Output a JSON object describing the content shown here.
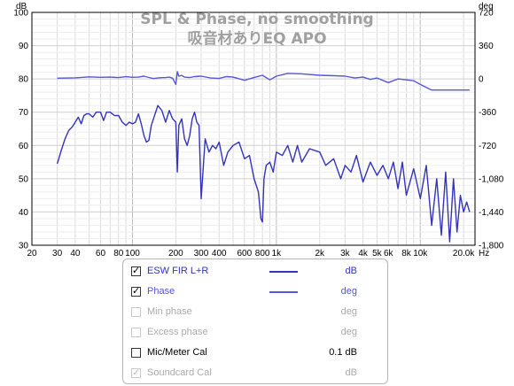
{
  "chart_data": {
    "type": "line",
    "title": "SPL & Phase, no smoothing",
    "subtitle": "吸音材ありEQ APO",
    "xlabel": "Hz",
    "ylabel": "dB",
    "y2label": "deg",
    "x_scale": "log",
    "xlim": [
      20,
      24000
    ],
    "ylim": [
      30,
      100
    ],
    "y2lim": [
      -1800,
      720
    ],
    "grid": true,
    "x_ticks": [
      {
        "v": 20,
        "l": "20"
      },
      {
        "v": 30,
        "l": "30"
      },
      {
        "v": 40,
        "l": "40"
      },
      {
        "v": 60,
        "l": "60"
      },
      {
        "v": 80,
        "l": "80"
      },
      {
        "v": 100,
        "l": "100"
      },
      {
        "v": 200,
        "l": "200"
      },
      {
        "v": 300,
        "l": "300"
      },
      {
        "v": 400,
        "l": "400"
      },
      {
        "v": 600,
        "l": "600"
      },
      {
        "v": 800,
        "l": "800"
      },
      {
        "v": 1000,
        "l": "1k"
      },
      {
        "v": 2000,
        "l": "2k"
      },
      {
        "v": 3000,
        "l": "3k"
      },
      {
        "v": 4000,
        "l": "4k"
      },
      {
        "v": 5000,
        "l": "5k"
      },
      {
        "v": 6000,
        "l": "6k"
      },
      {
        "v": 8000,
        "l": "8k"
      },
      {
        "v": 10000,
        "l": "10k"
      },
      {
        "v": 20000,
        "l": "20.0k"
      }
    ],
    "y_ticks": [
      "100",
      "90",
      "80",
      "70",
      "60",
      "50",
      "40",
      "30"
    ],
    "y2_ticks": [
      "720",
      "360",
      "0",
      "-360",
      "-720",
      "-1,080",
      "-1,440",
      "-1,800"
    ],
    "series": [
      {
        "name": "ESW FIR L+R",
        "axis": "left",
        "color": "#3333bb",
        "x": [
          30,
          32,
          34,
          36,
          38,
          40,
          42,
          44,
          46,
          48,
          50,
          53,
          56,
          60,
          63,
          66,
          70,
          75,
          80,
          85,
          90,
          95,
          100,
          105,
          110,
          115,
          120,
          125,
          130,
          135,
          140,
          150,
          160,
          170,
          180,
          190,
          200,
          205,
          210,
          220,
          230,
          240,
          250,
          260,
          270,
          280,
          290,
          300,
          320,
          340,
          360,
          380,
          400,
          430,
          460,
          500,
          550,
          600,
          650,
          700,
          750,
          780,
          800,
          820,
          850,
          900,
          950,
          1000,
          1100,
          1200,
          1300,
          1400,
          1500,
          1700,
          2000,
          2200,
          2500,
          2800,
          3000,
          3300,
          3600,
          4000,
          4500,
          5000,
          5500,
          6000,
          6500,
          7000,
          7500,
          8000,
          9000,
          10000,
          11000,
          12000,
          13000,
          14000,
          15000,
          16000,
          17000,
          18000,
          19000,
          20000,
          21000,
          22000
        ],
        "y": [
          54.5,
          58.5,
          62,
          64.5,
          65.5,
          67,
          68.5,
          66.5,
          69,
          69.5,
          69.5,
          68.5,
          70,
          70,
          67.5,
          70,
          70,
          69,
          69,
          67,
          66,
          67,
          66.5,
          67,
          69.5,
          66.5,
          63,
          61,
          61.5,
          66,
          68,
          72,
          70.5,
          67,
          70.5,
          68,
          67,
          52,
          66,
          68,
          62,
          60,
          63,
          68,
          70,
          67,
          66,
          44,
          62,
          58,
          60,
          59,
          61,
          54,
          58,
          60,
          61,
          56,
          57,
          50,
          46,
          38,
          37,
          50,
          54,
          55,
          52,
          58,
          57,
          60,
          55,
          60,
          55,
          59,
          58,
          54,
          56,
          50,
          54,
          52,
          57,
          49,
          55,
          51,
          54,
          50,
          55,
          47,
          55,
          45,
          53,
          44,
          54,
          36,
          50,
          33,
          52,
          31,
          50,
          34,
          45,
          40,
          43,
          40
        ]
      },
      {
        "name": "Phase",
        "axis": "right",
        "color": "#5555dd",
        "x": [
          30,
          40,
          50,
          60,
          70,
          80,
          90,
          100,
          110,
          120,
          130,
          140,
          150,
          160,
          170,
          180,
          190,
          200,
          205,
          210,
          220,
          230,
          250,
          270,
          300,
          350,
          400,
          450,
          500,
          600,
          700,
          800,
          900,
          1000,
          1200,
          1500,
          2000,
          2500,
          3000,
          3500,
          4000,
          4500,
          5000,
          6000,
          7000,
          8000,
          9000,
          10000,
          12000,
          14000,
          16000,
          18000,
          20000,
          22000
        ],
        "y": [
          8,
          12,
          22,
          18,
          20,
          15,
          24,
          18,
          20,
          30,
          16,
          4,
          10,
          14,
          15,
          20,
          8,
          -60,
          80,
          30,
          38,
          20,
          15,
          25,
          30,
          10,
          5,
          25,
          20,
          -15,
          15,
          40,
          -10,
          30,
          60,
          55,
          40,
          35,
          30,
          10,
          20,
          -5,
          10,
          -40,
          0,
          -10,
          -20,
          -60,
          -120,
          -120,
          -120,
          -120,
          -120,
          -120
        ]
      }
    ]
  },
  "legend": {
    "items": [
      {
        "label": "ESW FIR L+R",
        "unit": "dB",
        "checked": "✓",
        "enabled": true,
        "color": "#3333bb",
        "show_line": true
      },
      {
        "label": "Phase",
        "unit": "deg",
        "checked": "✓",
        "enabled": true,
        "color": "#5555dd",
        "show_line": true
      },
      {
        "label": "Min phase",
        "unit": "deg",
        "checked": "",
        "enabled": false,
        "color": "#aaaaaa",
        "show_line": false
      },
      {
        "label": "Excess phase",
        "unit": "deg",
        "checked": "",
        "enabled": false,
        "color": "#aaaaaa",
        "show_line": false
      },
      {
        "label": "Mic/Meter Cal",
        "unit": "0.1 dB",
        "checked": "",
        "enabled": true,
        "color": "#000000",
        "show_line": false
      },
      {
        "label": "Soundcard Cal",
        "unit": "dB",
        "checked": "✓",
        "enabled": false,
        "color": "#aaaaaa",
        "show_line": false
      }
    ]
  }
}
